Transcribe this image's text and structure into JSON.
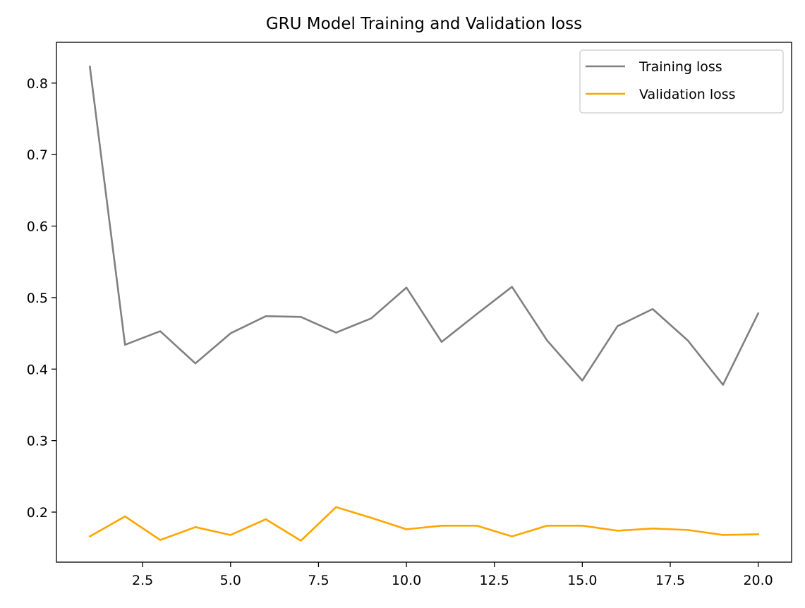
{
  "chart_data": {
    "type": "line",
    "title": "GRU Model Training and Validation loss",
    "xlabel": "",
    "ylabel": "",
    "xlim": [
      0.05,
      20.95
    ],
    "ylim": [
      0.13,
      0.857
    ],
    "xticks": [
      2.5,
      5.0,
      7.5,
      10.0,
      12.5,
      15.0,
      17.5,
      20.0
    ],
    "xtick_labels": [
      "2.5",
      "5.0",
      "7.5",
      "10.0",
      "12.5",
      "15.0",
      "17.5",
      "20.0"
    ],
    "yticks": [
      0.2,
      0.3,
      0.4,
      0.5,
      0.6,
      0.7,
      0.8
    ],
    "ytick_labels": [
      "0.2",
      "0.3",
      "0.4",
      "0.5",
      "0.6",
      "0.7",
      "0.8"
    ],
    "grid": false,
    "legend_position": "top-right",
    "x": [
      1,
      2,
      3,
      4,
      5,
      6,
      7,
      8,
      9,
      10,
      11,
      12,
      13,
      14,
      15,
      16,
      17,
      18,
      19,
      20
    ],
    "series": [
      {
        "name": "Training loss",
        "color": "#808080",
        "values": [
          0.823,
          0.434,
          0.453,
          0.408,
          0.45,
          0.474,
          0.473,
          0.451,
          0.471,
          0.514,
          0.438,
          0.477,
          0.515,
          0.44,
          0.384,
          0.46,
          0.484,
          0.44,
          0.378,
          0.478
        ]
      },
      {
        "name": "Validation loss",
        "color": "#ffa500",
        "values": [
          0.166,
          0.194,
          0.161,
          0.179,
          0.168,
          0.19,
          0.16,
          0.207,
          0.192,
          0.176,
          0.181,
          0.181,
          0.166,
          0.181,
          0.181,
          0.174,
          0.177,
          0.175,
          0.168,
          0.169
        ]
      }
    ]
  }
}
